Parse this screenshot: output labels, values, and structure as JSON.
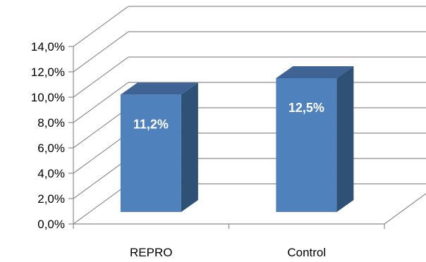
{
  "chart_data": {
    "type": "bar",
    "categories": [
      "REPRO",
      "Control"
    ],
    "values": [
      11.2,
      12.5
    ],
    "data_labels": [
      "11,2%",
      "12,5%"
    ],
    "y_ticks": [
      "0,0%",
      "2,0%",
      "4,0%",
      "6,0%",
      "8,0%",
      "10,0%",
      "12,0%",
      "14,0%"
    ],
    "ylim": [
      0,
      14
    ],
    "grid": true,
    "legend": "none",
    "style": "3d-column",
    "colors": {
      "front": "#4F81BD",
      "side": "#2F5176",
      "top": "#3E6394",
      "grid": "#8C8C8C"
    }
  }
}
